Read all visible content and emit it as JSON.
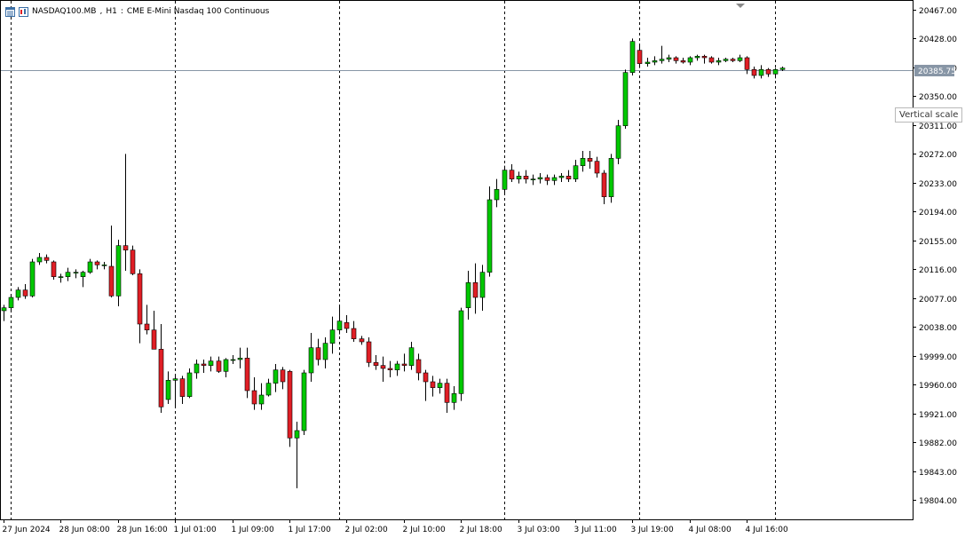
{
  "header": {
    "symbol": "NASDAQ100.MB",
    "timeframe": "H1",
    "description": "CME E-Mini Nasdaq 100 Continuous"
  },
  "tooltip": {
    "text": "Vertical scale"
  },
  "colors": {
    "up": "#00c800",
    "down": "#e01e25",
    "wick": "#000000",
    "bid_line": "#8896a6",
    "bid_label_bg": "#8896a6"
  },
  "chart_data": {
    "type": "candlestick",
    "title": "NASDAQ100.MB, H1: CME E-Mini Nasdaq 100 Continuous",
    "ylim": [
      19778,
      20480
    ],
    "y_ticks": [
      "20467.00",
      "20428.00",
      "20389.00",
      "20350.00",
      "20311.00",
      "20272.00",
      "20233.00",
      "20194.00",
      "20155.00",
      "20116.00",
      "20077.00",
      "20038.00",
      "19999.00",
      "19960.00",
      "19921.00",
      "19882.00",
      "19843.00",
      "19804.00"
    ],
    "x_labels": [
      "27 Jun 2024",
      "28 Jun 08:00",
      "28 Jun 16:00",
      "1 Jul 01:00",
      "1 Jul 09:00",
      "1 Jul 17:00",
      "2 Jul 02:00",
      "2 Jul 10:00",
      "2 Jul 18:00",
      "3 Jul 03:00",
      "3 Jul 11:00",
      "3 Jul 19:00",
      "4 Jul 08:00",
      "4 Jul 16:00"
    ],
    "x_label_bar_index": [
      0,
      8,
      16,
      24,
      32,
      40,
      48,
      56,
      64,
      72,
      80,
      88,
      96,
      104
    ],
    "separator_bar_index": [
      1,
      24,
      47,
      70,
      89,
      108
    ],
    "current_price": "20385.75",
    "grid": false,
    "candles": [
      {
        "o": 20060,
        "h": 20068,
        "l": 20046,
        "c": 20064
      },
      {
        "o": 20064,
        "h": 20082,
        "l": 20058,
        "c": 20078
      },
      {
        "o": 20078,
        "h": 20092,
        "l": 20074,
        "c": 20088
      },
      {
        "o": 20088,
        "h": 20096,
        "l": 20076,
        "c": 20080
      },
      {
        "o": 20080,
        "h": 20130,
        "l": 20078,
        "c": 20126
      },
      {
        "o": 20126,
        "h": 20138,
        "l": 20122,
        "c": 20132
      },
      {
        "o": 20132,
        "h": 20136,
        "l": 20124,
        "c": 20128
      },
      {
        "o": 20126,
        "h": 20128,
        "l": 20102,
        "c": 20106
      },
      {
        "o": 20106,
        "h": 20110,
        "l": 20098,
        "c": 20106
      },
      {
        "o": 20106,
        "h": 20118,
        "l": 20100,
        "c": 20112
      },
      {
        "o": 20112,
        "h": 20116,
        "l": 20104,
        "c": 20112
      },
      {
        "o": 20106,
        "h": 20114,
        "l": 20092,
        "c": 20112
      },
      {
        "o": 20112,
        "h": 20130,
        "l": 20110,
        "c": 20126
      },
      {
        "o": 20126,
        "h": 20128,
        "l": 20116,
        "c": 20122
      },
      {
        "o": 20122,
        "h": 20126,
        "l": 20116,
        "c": 20122
      },
      {
        "o": 20120,
        "h": 20175,
        "l": 20078,
        "c": 20080
      },
      {
        "o": 20080,
        "h": 20156,
        "l": 20066,
        "c": 20148
      },
      {
        "o": 20148,
        "h": 20272,
        "l": 20114,
        "c": 20142
      },
      {
        "o": 20142,
        "h": 20148,
        "l": 20108,
        "c": 20110
      },
      {
        "o": 20110,
        "h": 20116,
        "l": 20016,
        "c": 20042
      },
      {
        "o": 20042,
        "h": 20068,
        "l": 20028,
        "c": 20034
      },
      {
        "o": 20034,
        "h": 20060,
        "l": 20008,
        "c": 20008
      },
      {
        "o": 20008,
        "h": 20042,
        "l": 19922,
        "c": 19930
      },
      {
        "o": 19940,
        "h": 19978,
        "l": 19934,
        "c": 19966
      },
      {
        "o": 19966,
        "h": 19972,
        "l": 19930,
        "c": 19968
      },
      {
        "o": 19968,
        "h": 19972,
        "l": 19934,
        "c": 19944
      },
      {
        "o": 19944,
        "h": 19982,
        "l": 19942,
        "c": 19976
      },
      {
        "o": 19976,
        "h": 19994,
        "l": 19968,
        "c": 19988
      },
      {
        "o": 19988,
        "h": 19994,
        "l": 19976,
        "c": 19986
      },
      {
        "o": 19986,
        "h": 19998,
        "l": 19978,
        "c": 19992
      },
      {
        "o": 19992,
        "h": 19998,
        "l": 19976,
        "c": 19978
      },
      {
        "o": 19978,
        "h": 19996,
        "l": 19970,
        "c": 19994
      },
      {
        "o": 19994,
        "h": 20000,
        "l": 19988,
        "c": 19994
      },
      {
        "o": 19994,
        "h": 20010,
        "l": 19982,
        "c": 19996
      },
      {
        "o": 19996,
        "h": 20010,
        "l": 19942,
        "c": 19952
      },
      {
        "o": 19952,
        "h": 19970,
        "l": 19926,
        "c": 19934
      },
      {
        "o": 19934,
        "h": 19962,
        "l": 19926,
        "c": 19946
      },
      {
        "o": 19946,
        "h": 19968,
        "l": 19944,
        "c": 19962
      },
      {
        "o": 19962,
        "h": 19988,
        "l": 19950,
        "c": 19980
      },
      {
        "o": 19980,
        "h": 19984,
        "l": 19954,
        "c": 19964
      },
      {
        "o": 19978,
        "h": 19980,
        "l": 19876,
        "c": 19888
      },
      {
        "o": 19888,
        "h": 19910,
        "l": 19820,
        "c": 19898
      },
      {
        "o": 19898,
        "h": 19980,
        "l": 19892,
        "c": 19976
      },
      {
        "o": 19976,
        "h": 20030,
        "l": 19964,
        "c": 20010
      },
      {
        "o": 20010,
        "h": 20022,
        "l": 19986,
        "c": 19994
      },
      {
        "o": 19994,
        "h": 20024,
        "l": 19982,
        "c": 20016
      },
      {
        "o": 20016,
        "h": 20052,
        "l": 20002,
        "c": 20034
      },
      {
        "o": 20034,
        "h": 20066,
        "l": 20028,
        "c": 20046
      },
      {
        "o": 20044,
        "h": 20054,
        "l": 20030,
        "c": 20036
      },
      {
        "o": 20036,
        "h": 20046,
        "l": 20018,
        "c": 20022
      },
      {
        "o": 20022,
        "h": 20026,
        "l": 20014,
        "c": 20018
      },
      {
        "o": 20018,
        "h": 20024,
        "l": 19984,
        "c": 19990
      },
      {
        "o": 19990,
        "h": 20000,
        "l": 19980,
        "c": 19986
      },
      {
        "o": 19986,
        "h": 19998,
        "l": 19964,
        "c": 19982
      },
      {
        "o": 19982,
        "h": 19992,
        "l": 19970,
        "c": 19980
      },
      {
        "o": 19980,
        "h": 19992,
        "l": 19972,
        "c": 19988
      },
      {
        "o": 19988,
        "h": 20002,
        "l": 19978,
        "c": 19986
      },
      {
        "o": 19986,
        "h": 20018,
        "l": 19980,
        "c": 20010
      },
      {
        "o": 19994,
        "h": 20002,
        "l": 19966,
        "c": 19976
      },
      {
        "o": 19976,
        "h": 19980,
        "l": 19938,
        "c": 19964
      },
      {
        "o": 19964,
        "h": 19972,
        "l": 19944,
        "c": 19956
      },
      {
        "o": 19956,
        "h": 19968,
        "l": 19948,
        "c": 19962
      },
      {
        "o": 19962,
        "h": 19968,
        "l": 19922,
        "c": 19936
      },
      {
        "o": 19936,
        "h": 19958,
        "l": 19926,
        "c": 19948
      },
      {
        "o": 19948,
        "h": 20064,
        "l": 19938,
        "c": 20060
      },
      {
        "o": 20064,
        "h": 20114,
        "l": 20048,
        "c": 20098
      },
      {
        "o": 20098,
        "h": 20124,
        "l": 20056,
        "c": 20078
      },
      {
        "o": 20078,
        "h": 20122,
        "l": 20060,
        "c": 20112
      },
      {
        "o": 20112,
        "h": 20228,
        "l": 20106,
        "c": 20210
      },
      {
        "o": 20210,
        "h": 20238,
        "l": 20200,
        "c": 20224
      },
      {
        "o": 20224,
        "h": 20256,
        "l": 20216,
        "c": 20250
      },
      {
        "o": 20250,
        "h": 20258,
        "l": 20234,
        "c": 20238
      },
      {
        "o": 20238,
        "h": 20248,
        "l": 20232,
        "c": 20242
      },
      {
        "o": 20242,
        "h": 20250,
        "l": 20232,
        "c": 20238
      },
      {
        "o": 20238,
        "h": 20244,
        "l": 20230,
        "c": 20238
      },
      {
        "o": 20238,
        "h": 20246,
        "l": 20232,
        "c": 20240
      },
      {
        "o": 20240,
        "h": 20244,
        "l": 20230,
        "c": 20236
      },
      {
        "o": 20236,
        "h": 20244,
        "l": 20230,
        "c": 20240
      },
      {
        "o": 20240,
        "h": 20246,
        "l": 20234,
        "c": 20242
      },
      {
        "o": 20242,
        "h": 20250,
        "l": 20234,
        "c": 20238
      },
      {
        "o": 20238,
        "h": 20264,
        "l": 20234,
        "c": 20256
      },
      {
        "o": 20256,
        "h": 20276,
        "l": 20248,
        "c": 20266
      },
      {
        "o": 20266,
        "h": 20276,
        "l": 20252,
        "c": 20262
      },
      {
        "o": 20262,
        "h": 20268,
        "l": 20240,
        "c": 20246
      },
      {
        "o": 20246,
        "h": 20250,
        "l": 20204,
        "c": 20214
      },
      {
        "o": 20214,
        "h": 20272,
        "l": 20206,
        "c": 20266
      },
      {
        "o": 20266,
        "h": 20318,
        "l": 20258,
        "c": 20310
      },
      {
        "o": 20310,
        "h": 20386,
        "l": 20306,
        "c": 20382
      },
      {
        "o": 20382,
        "h": 20428,
        "l": 20378,
        "c": 20424
      },
      {
        "o": 20412,
        "h": 20418,
        "l": 20388,
        "c": 20394
      },
      {
        "o": 20394,
        "h": 20402,
        "l": 20390,
        "c": 20396
      },
      {
        "o": 20396,
        "h": 20404,
        "l": 20392,
        "c": 20398
      },
      {
        "o": 20398,
        "h": 20418,
        "l": 20394,
        "c": 20400
      },
      {
        "o": 20400,
        "h": 20406,
        "l": 20396,
        "c": 20402
      },
      {
        "o": 20402,
        "h": 20404,
        "l": 20394,
        "c": 20398
      },
      {
        "o": 20398,
        "h": 20402,
        "l": 20394,
        "c": 20396
      },
      {
        "o": 20396,
        "h": 20404,
        "l": 20392,
        "c": 20402
      },
      {
        "o": 20402,
        "h": 20406,
        "l": 20398,
        "c": 20404
      },
      {
        "o": 20404,
        "h": 20406,
        "l": 20394,
        "c": 20402
      },
      {
        "o": 20402,
        "h": 20404,
        "l": 20394,
        "c": 20396
      },
      {
        "o": 20396,
        "h": 20402,
        "l": 20392,
        "c": 20398
      },
      {
        "o": 20398,
        "h": 20402,
        "l": 20396,
        "c": 20400
      },
      {
        "o": 20400,
        "h": 20402,
        "l": 20396,
        "c": 20398
      },
      {
        "o": 20398,
        "h": 20406,
        "l": 20396,
        "c": 20402
      },
      {
        "o": 20402,
        "h": 20404,
        "l": 20380,
        "c": 20386
      },
      {
        "o": 20386,
        "h": 20390,
        "l": 20374,
        "c": 20378
      },
      {
        "o": 20378,
        "h": 20392,
        "l": 20374,
        "c": 20386
      },
      {
        "o": 20386,
        "h": 20388,
        "l": 20376,
        "c": 20380
      },
      {
        "o": 20380,
        "h": 20388,
        "l": 20374,
        "c": 20386
      },
      {
        "o": 20386,
        "h": 20390,
        "l": 20384,
        "c": 20388
      }
    ]
  }
}
